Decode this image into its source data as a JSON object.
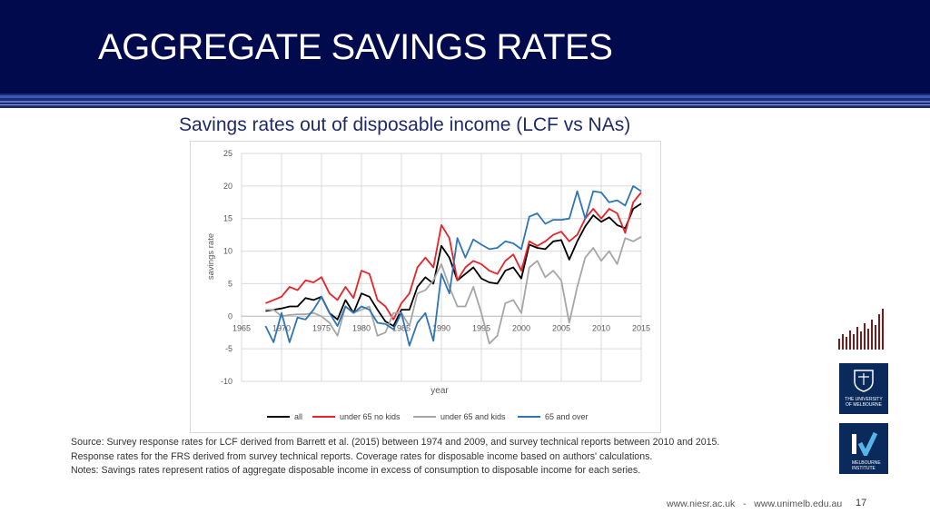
{
  "header": {
    "title": "AGGREGATE SAVINGS RATES",
    "bg_color": "#000a4d"
  },
  "subtitle": "Savings rates out of disposable income (LCF vs NAs)",
  "chart_data": {
    "type": "line",
    "title": "",
    "xlabel": "year",
    "ylabel": "savings rate",
    "xlim": [
      1965,
      2015
    ],
    "ylim": [
      -10,
      25
    ],
    "x_ticks": [
      "1965",
      "1970",
      "1975",
      "1980",
      "1985",
      "1990",
      "1995",
      "2000",
      "2005",
      "2010",
      "2015"
    ],
    "y_ticks": [
      "25",
      "20",
      "15",
      "10",
      "5",
      "0",
      "-5",
      "-10"
    ],
    "grid": true,
    "legend_position": "bottom",
    "series": [
      {
        "name": "all",
        "color": "#000000",
        "x": [
          1968,
          1969,
          1970,
          1971,
          1972,
          1973,
          1974,
          1975,
          1976,
          1977,
          1978,
          1979,
          1980,
          1981,
          1982,
          1983,
          1984,
          1985,
          1986,
          1987,
          1988,
          1989,
          1990,
          1991,
          1992,
          1993,
          1994,
          1995,
          1996,
          1997,
          1998,
          1999,
          2000,
          2001,
          2002,
          2003,
          2004,
          2005,
          2006,
          2007,
          2008,
          2009,
          2010,
          2011,
          2012,
          2013,
          2014,
          2015
        ],
        "values": [
          0.8,
          1.0,
          1.2,
          1.5,
          1.5,
          2.8,
          2.5,
          3.0,
          0.5,
          -0.5,
          2.5,
          0.5,
          3.5,
          3.0,
          1.0,
          -0.8,
          -1.5,
          1.0,
          1.0,
          4.5,
          6.0,
          5.0,
          10.8,
          9.0,
          5.5,
          6.5,
          7.5,
          5.8,
          5.2,
          5.0,
          7.0,
          7.5,
          5.8,
          11.0,
          10.5,
          10.3,
          11.5,
          11.7,
          8.7,
          11.5,
          13.8,
          15.5,
          14.5,
          15.2,
          14.0,
          13.5,
          16.5,
          17.3
        ]
      },
      {
        "name": "under 65 no kids",
        "color": "#e8232a",
        "x": [
          1968,
          1969,
          1970,
          1971,
          1972,
          1973,
          1974,
          1975,
          1976,
          1977,
          1978,
          1979,
          1980,
          1981,
          1982,
          1983,
          1984,
          1985,
          1986,
          1987,
          1988,
          1989,
          1990,
          1991,
          1992,
          1993,
          1994,
          1995,
          1996,
          1997,
          1998,
          1999,
          2000,
          2001,
          2002,
          2003,
          2004,
          2005,
          2006,
          2007,
          2008,
          2009,
          2010,
          2011,
          2012,
          2013,
          2014,
          2015
        ],
        "values": [
          2.0,
          2.5,
          3.0,
          4.5,
          4.0,
          5.5,
          5.2,
          6.0,
          3.5,
          2.5,
          4.5,
          2.8,
          7.0,
          6.5,
          2.5,
          1.5,
          -0.5,
          2.0,
          3.5,
          7.5,
          9.0,
          7.5,
          14.0,
          12.0,
          5.5,
          7.5,
          8.5,
          8.0,
          7.0,
          6.5,
          8.5,
          9.5,
          7.0,
          11.5,
          10.8,
          11.5,
          12.5,
          13.0,
          11.5,
          12.5,
          15.0,
          16.5,
          15.0,
          16.5,
          15.8,
          12.8,
          17.5,
          19.0
        ]
      },
      {
        "name": "under 65 and kids",
        "color": "#a6a6a6",
        "x": [
          1968,
          1969,
          1970,
          1971,
          1972,
          1973,
          1974,
          1975,
          1976,
          1977,
          1978,
          1979,
          1980,
          1981,
          1982,
          1983,
          1984,
          1985,
          1986,
          1987,
          1988,
          1989,
          1990,
          1991,
          1992,
          1993,
          1994,
          1995,
          1996,
          1997,
          1998,
          1999,
          2000,
          2001,
          2002,
          2003,
          2004,
          2005,
          2006,
          2007,
          2008,
          2009,
          2010,
          2011,
          2012,
          2013,
          2014,
          2015
        ],
        "values": [
          1.0,
          1.0,
          0.0,
          0.2,
          0.3,
          0.3,
          0.5,
          0.0,
          -1.0,
          -3.0,
          1.5,
          0.5,
          1.0,
          1.5,
          -3.0,
          -2.5,
          0.5,
          0.5,
          -1.5,
          3.5,
          4.0,
          5.5,
          8.0,
          4.5,
          1.5,
          1.5,
          4.5,
          0.5,
          -4.2,
          -3.0,
          2.0,
          2.5,
          0.5,
          7.5,
          8.5,
          6.0,
          7.0,
          5.5,
          -1.0,
          4.5,
          9.0,
          10.5,
          8.5,
          10.0,
          8.0,
          12.0,
          11.5,
          12.2
        ]
      },
      {
        "name": "65 and over",
        "color": "#2e75b6",
        "x": [
          1968,
          1969,
          1970,
          1971,
          1972,
          1973,
          1974,
          1975,
          1976,
          1977,
          1978,
          1979,
          1980,
          1981,
          1982,
          1983,
          1984,
          1985,
          1986,
          1987,
          1988,
          1989,
          1990,
          1991,
          1992,
          1993,
          1994,
          1995,
          1996,
          1997,
          1998,
          1999,
          2000,
          2001,
          2002,
          2003,
          2004,
          2005,
          2006,
          2007,
          2008,
          2009,
          2010,
          2011,
          2012,
          2013,
          2014,
          2015
        ],
        "values": [
          -1.5,
          -4.0,
          0.5,
          -4.0,
          -0.2,
          -0.5,
          1.0,
          3.0,
          0.5,
          -1.5,
          1.5,
          0.5,
          1.5,
          1.0,
          -1.0,
          -1.2,
          -2.0,
          0.5,
          -4.5,
          -1.0,
          0.5,
          -3.8,
          6.5,
          3.5,
          12.0,
          9.0,
          11.8,
          11.0,
          10.3,
          10.5,
          11.5,
          11.2,
          10.3,
          15.3,
          15.8,
          14.2,
          14.8,
          14.8,
          15.0,
          19.2,
          15.0,
          19.2,
          19.0,
          17.5,
          17.8,
          17.0,
          20.0,
          19.2
        ]
      }
    ]
  },
  "source_lines": [
    "Source:  Survey response rates for LCF derived from Barrett et al. (2015) between 1974 and 2009, and survey technical reports between 2010 and 2015.",
    "Response rates for the FRS derived from survey technical reports. Coverage rates for disposable income based on authors' calculations.",
    "Notes: Savings rates represent ratios of aggregate disposable income in excess of consumption to disposable income for each series."
  ],
  "footer": {
    "links": "www.niesr.ac.uk   -   www.unimelb.edu.au",
    "page": "17"
  },
  "logos": {
    "melbourne": "THE UNIVERSITY OF MELBOURNE",
    "institute": "MELBOURNE INSTITUTE"
  }
}
